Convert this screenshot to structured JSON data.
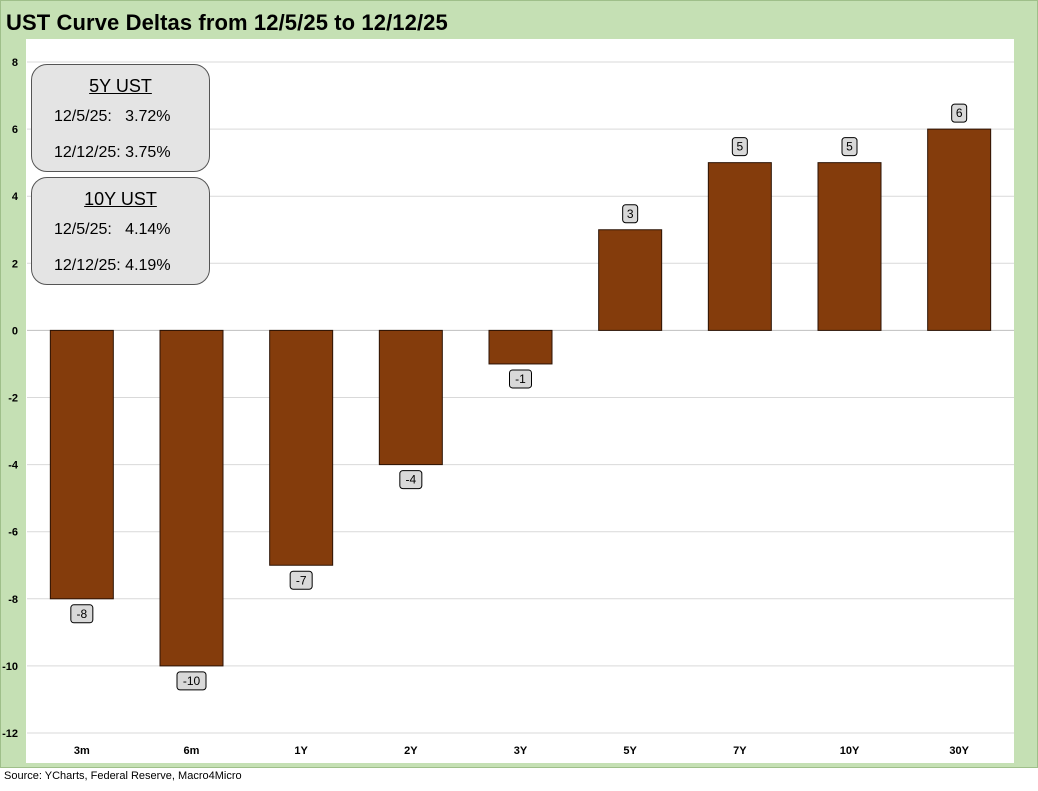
{
  "title": "UST Curve Deltas from 12/5/25 to 12/12/25",
  "source": "Source: YCharts, Federal Reserve, Macro4Micro",
  "info_boxes": [
    {
      "header": "5Y UST",
      "row1": "12/5/25:   3.72%",
      "row2": "12/12/25: 3.75%"
    },
    {
      "header": "10Y UST",
      "row1": "12/5/25:   4.14%",
      "row2": "12/12/25: 4.19%"
    }
  ],
  "colors": {
    "bar": "#843c0c",
    "background": "#c5e0b4",
    "label_box": "#d9d9d9"
  },
  "chart_data": {
    "type": "bar",
    "title": "UST Curve Deltas from 12/5/25 to 12/12/25",
    "categories": [
      "3m",
      "6m",
      "1Y",
      "2Y",
      "3Y",
      "5Y",
      "7Y",
      "10Y",
      "30Y"
    ],
    "values": [
      -8,
      -10,
      -7,
      -4,
      -1,
      3,
      5,
      5,
      6
    ],
    "xlabel": "",
    "ylabel": "",
    "ylim": [
      -12,
      8
    ],
    "yticks": [
      8,
      6,
      4,
      2,
      0,
      -2,
      -4,
      -6,
      -8,
      -10,
      -12
    ],
    "grid": true
  }
}
